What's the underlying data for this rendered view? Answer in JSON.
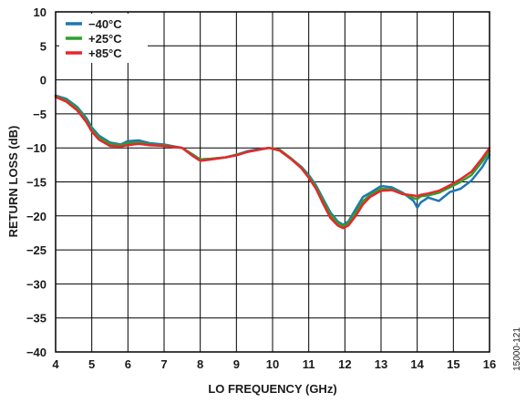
{
  "chart_data": {
    "type": "line",
    "title": "",
    "xlabel": "LO FREQUENCY (GHz)",
    "ylabel": "RETURN LOSS (dB)",
    "xlim": [
      4,
      16
    ],
    "ylim": [
      -40,
      10
    ],
    "xticks": [
      4,
      5,
      6,
      7,
      8,
      9,
      10,
      11,
      12,
      13,
      14,
      15,
      16
    ],
    "yticks": [
      10,
      5,
      0,
      -5,
      -10,
      -15,
      -20,
      -25,
      -30,
      -35,
      -40
    ],
    "ytick_labels": [
      "10",
      "5",
      "0",
      "−5",
      "−10",
      "−15",
      "−20",
      "−25",
      "−30",
      "−35",
      "−40"
    ],
    "grid": true,
    "legend_position": "top-left",
    "series": [
      {
        "name": "−40°C",
        "color": "#1f77b4",
        "x": [
          4.0,
          4.3,
          4.6,
          4.85,
          5.0,
          5.2,
          5.5,
          5.8,
          6.0,
          6.3,
          6.6,
          7.0,
          7.5,
          7.8,
          8.0,
          8.3,
          8.7,
          9.0,
          9.3,
          9.6,
          9.9,
          10.2,
          10.5,
          10.8,
          11.0,
          11.2,
          11.4,
          11.6,
          11.8,
          11.95,
          12.1,
          12.3,
          12.5,
          12.7,
          13.0,
          13.3,
          13.6,
          13.9,
          14.0,
          14.1,
          14.3,
          14.6,
          14.9,
          15.2,
          15.5,
          15.8,
          16.0
        ],
        "y": [
          -2.3,
          -2.8,
          -4.0,
          -5.6,
          -7.0,
          -8.2,
          -9.2,
          -9.5,
          -9.0,
          -8.9,
          -9.3,
          -9.5,
          -10.0,
          -11.0,
          -11.7,
          -11.6,
          -11.4,
          -11.0,
          -10.5,
          -10.2,
          -10.0,
          -10.3,
          -11.5,
          -12.8,
          -14.0,
          -15.5,
          -17.5,
          -19.5,
          -20.8,
          -21.3,
          -20.8,
          -19.0,
          -17.2,
          -16.6,
          -15.6,
          -15.8,
          -16.6,
          -17.8,
          -18.8,
          -18.0,
          -17.3,
          -17.8,
          -16.5,
          -16.0,
          -14.8,
          -12.8,
          -11.0
        ]
      },
      {
        "name": "+25°C",
        "color": "#2ca02c",
        "x": [
          4.0,
          4.3,
          4.6,
          4.85,
          5.0,
          5.2,
          5.5,
          5.8,
          6.0,
          6.3,
          6.6,
          7.0,
          7.5,
          7.8,
          8.0,
          8.3,
          8.7,
          9.0,
          9.3,
          9.6,
          9.9,
          10.2,
          10.5,
          10.8,
          11.0,
          11.2,
          11.4,
          11.6,
          11.8,
          11.95,
          12.1,
          12.3,
          12.5,
          12.7,
          13.0,
          13.3,
          13.6,
          13.9,
          14.0,
          14.1,
          14.3,
          14.6,
          14.9,
          15.2,
          15.5,
          15.8,
          16.0
        ],
        "y": [
          -2.4,
          -3.0,
          -4.2,
          -5.9,
          -7.3,
          -8.5,
          -9.4,
          -9.6,
          -9.3,
          -9.2,
          -9.5,
          -9.6,
          -10.0,
          -11.0,
          -11.7,
          -11.6,
          -11.4,
          -11.0,
          -10.6,
          -10.3,
          -10.0,
          -10.3,
          -11.5,
          -12.9,
          -14.2,
          -15.7,
          -17.8,
          -19.8,
          -21.0,
          -21.5,
          -21.0,
          -19.5,
          -17.8,
          -16.9,
          -16.0,
          -16.1,
          -16.7,
          -17.4,
          -17.5,
          -17.1,
          -17.0,
          -16.6,
          -15.8,
          -15.0,
          -14.0,
          -12.0,
          -10.5
        ]
      },
      {
        "name": "+85°C",
        "color": "#e8262b",
        "x": [
          4.0,
          4.3,
          4.6,
          4.85,
          5.0,
          5.2,
          5.5,
          5.8,
          6.0,
          6.3,
          6.6,
          7.0,
          7.5,
          7.8,
          8.0,
          8.3,
          8.7,
          9.0,
          9.3,
          9.6,
          9.9,
          10.2,
          10.5,
          10.8,
          11.0,
          11.2,
          11.4,
          11.6,
          11.8,
          11.95,
          12.1,
          12.3,
          12.5,
          12.7,
          13.0,
          13.3,
          13.6,
          13.9,
          14.0,
          14.1,
          14.3,
          14.6,
          14.9,
          15.2,
          15.5,
          15.8,
          16.0
        ],
        "y": [
          -2.5,
          -3.2,
          -4.5,
          -6.2,
          -7.6,
          -8.8,
          -9.7,
          -9.8,
          -9.6,
          -9.4,
          -9.6,
          -9.7,
          -10.0,
          -11.2,
          -11.9,
          -11.7,
          -11.4,
          -11.1,
          -10.6,
          -10.3,
          -10.0,
          -10.4,
          -11.6,
          -13.0,
          -14.4,
          -16.0,
          -18.2,
          -20.3,
          -21.4,
          -21.8,
          -21.4,
          -20.0,
          -18.3,
          -17.2,
          -16.3,
          -16.2,
          -16.8,
          -17.0,
          -17.1,
          -16.9,
          -16.7,
          -16.3,
          -15.5,
          -14.6,
          -13.5,
          -11.5,
          -10.0
        ]
      }
    ]
  },
  "figure_id": "15000-121"
}
